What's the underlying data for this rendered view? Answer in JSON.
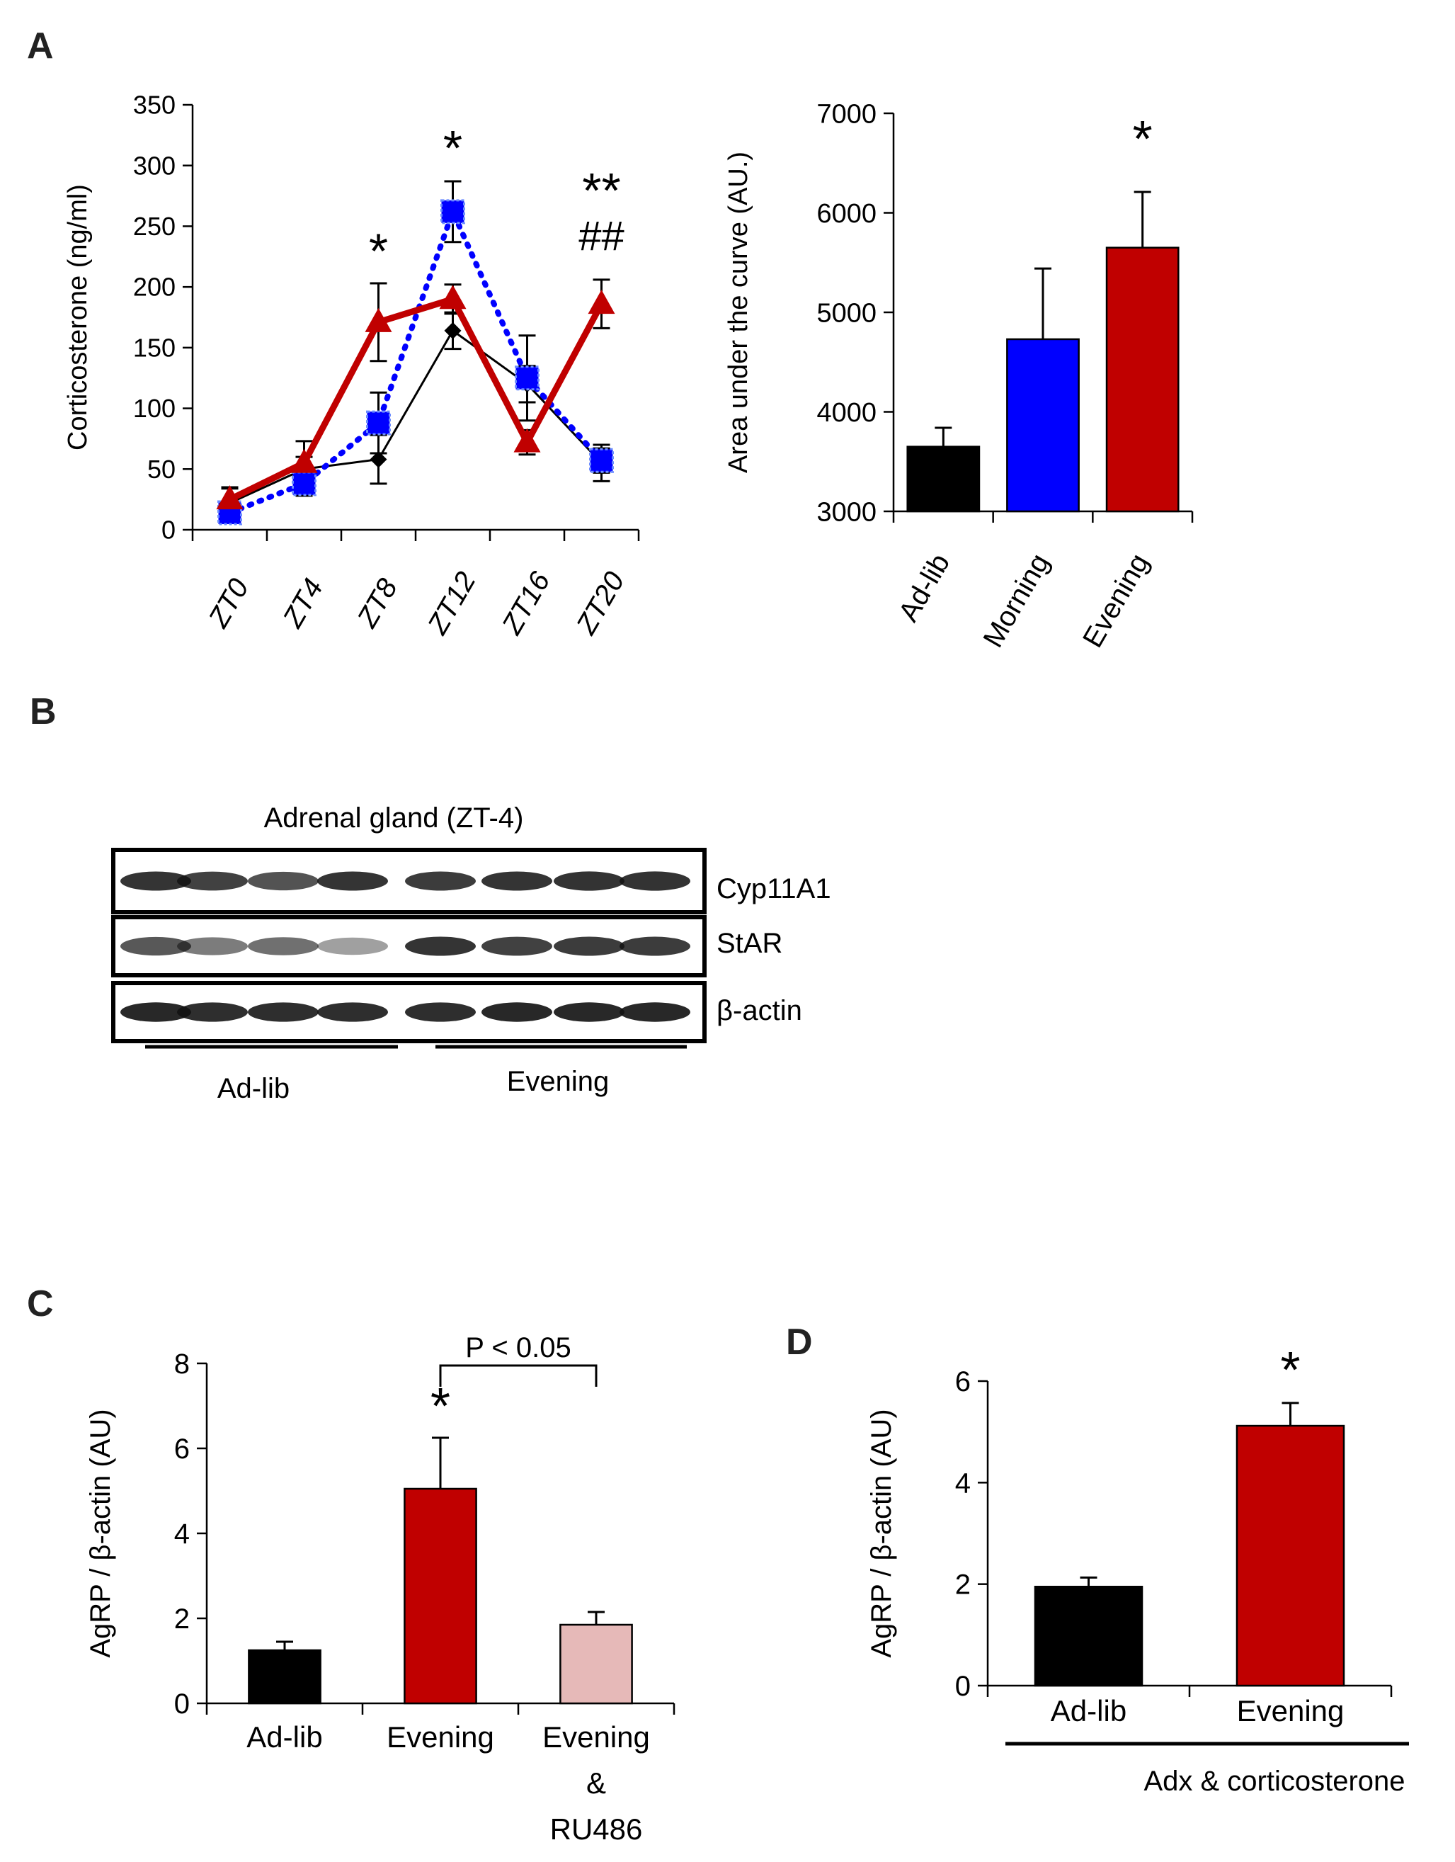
{
  "panels": {
    "A": "A",
    "B": "B",
    "C": "C",
    "D": "D"
  },
  "colors": {
    "adlib": "#000000",
    "morning": "#0000ff",
    "evening": "#c00000",
    "evening_ru486": "#e6b9b8",
    "blot_bg": "#ffffff",
    "band": "#111111"
  },
  "chart_data": [
    {
      "id": "A-left",
      "type": "line",
      "ylabel": "Corticosterone (ng/ml)",
      "ylim": [
        0,
        350
      ],
      "yticks": [
        0,
        50,
        100,
        150,
        200,
        250,
        300,
        350
      ],
      "categories": [
        "ZT0",
        "ZT4",
        "ZT8",
        "ZT12",
        "ZT16",
        "ZT20"
      ],
      "series": [
        {
          "key": "adlib",
          "style": "solid-thin",
          "marker": "diamond",
          "values": [
            22,
            50,
            58,
            164,
            120,
            55
          ],
          "err": [
            12,
            10,
            20,
            15,
            15,
            15
          ]
        },
        {
          "key": "morning",
          "style": "dotted",
          "marker": "square",
          "values": [
            14,
            38,
            88,
            262,
            125,
            57
          ],
          "err": [
            8,
            10,
            25,
            25,
            35,
            10
          ]
        },
        {
          "key": "evening",
          "style": "solid-thick",
          "marker": "triangle",
          "values": [
            25,
            55,
            171,
            190,
            72,
            186
          ],
          "err": [
            10,
            18,
            32,
            12,
            10,
            20
          ]
        }
      ],
      "annotations": [
        {
          "text": "*",
          "at": "ZT8",
          "y": 230
        },
        {
          "text": "*",
          "at": "ZT12",
          "y": 315
        },
        {
          "text": "**",
          "at": "ZT20",
          "y": 280
        },
        {
          "text": "##",
          "at": "ZT20",
          "y": 245
        }
      ]
    },
    {
      "id": "A-right",
      "type": "bar",
      "ylabel": "Area under the curve (AU.)",
      "ylim": [
        3000,
        7000
      ],
      "yticks": [
        3000,
        4000,
        5000,
        6000,
        7000
      ],
      "categories": [
        "Ad-lib",
        "Morning",
        "Evening"
      ],
      "values": [
        3650,
        4730,
        5650
      ],
      "err": [
        190,
        710,
        560
      ],
      "colorKeys": [
        "adlib",
        "morning",
        "evening"
      ],
      "annotations": [
        {
          "text": "*",
          "at": "Evening"
        }
      ]
    },
    {
      "id": "C",
      "type": "bar",
      "ylabel": "AgRP / β-actin (AU)",
      "ylim": [
        0,
        8
      ],
      "yticks": [
        0,
        2,
        4,
        6,
        8
      ],
      "categories": [
        "Ad-lib",
        "Evening",
        "Evening & RU486"
      ],
      "category_lines": [
        [
          "Ad-lib"
        ],
        [
          "Evening"
        ],
        [
          "Evening",
          "&",
          "RU486"
        ]
      ],
      "values": [
        1.25,
        5.05,
        1.85
      ],
      "err": [
        0.2,
        1.2,
        0.3
      ],
      "colorKeys": [
        "adlib",
        "evening",
        "evening_ru486"
      ],
      "annotations": [
        {
          "text": "*",
          "at": "Evening"
        }
      ],
      "bracket": {
        "text": "P < 0.05",
        "from": "Evening",
        "to": "Evening & RU486"
      }
    },
    {
      "id": "D",
      "type": "bar",
      "ylabel": "AgRP / β-actin (AU)",
      "ylim": [
        0,
        6
      ],
      "yticks": [
        0,
        2,
        4,
        6
      ],
      "categories": [
        "Ad-lib",
        "Evening"
      ],
      "values": [
        1.95,
        5.12
      ],
      "err": [
        0.18,
        0.45
      ],
      "colorKeys": [
        "adlib",
        "evening"
      ],
      "annotations": [
        {
          "text": "*",
          "at": "Evening"
        }
      ],
      "group_label": "Adx & corticosterone"
    }
  ],
  "blot": {
    "title": "Adrenal gland (ZT-4)",
    "rows": [
      {
        "label": "Cyp11A1",
        "intensity": [
          0.85,
          0.8,
          0.72,
          0.85,
          0.82,
          0.85,
          0.86,
          0.86
        ]
      },
      {
        "label": "StAR",
        "intensity": [
          0.7,
          0.55,
          0.6,
          0.4,
          0.85,
          0.8,
          0.82,
          0.82
        ]
      },
      {
        "label": "β-actin",
        "intensity": [
          0.9,
          0.88,
          0.88,
          0.88,
          0.88,
          0.9,
          0.9,
          0.9
        ]
      }
    ],
    "groups": [
      "Ad-lib",
      "Evening"
    ]
  }
}
